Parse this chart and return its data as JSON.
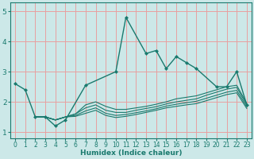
{
  "xlabel": "Humidex (Indice chaleur)",
  "line_color": "#1a7a6e",
  "bg_color": "#cce8e8",
  "grid_color": "#e8a0a0",
  "xlim": [
    -0.5,
    23.5
  ],
  "ylim": [
    0.8,
    5.3
  ],
  "yticks": [
    1,
    2,
    3,
    4,
    5
  ],
  "xticks": [
    0,
    1,
    2,
    3,
    4,
    5,
    6,
    7,
    8,
    9,
    10,
    11,
    12,
    13,
    14,
    15,
    16,
    17,
    18,
    19,
    20,
    21,
    22,
    23
  ],
  "main_line": {
    "x": [
      0,
      1,
      2,
      3,
      4,
      5,
      7,
      10,
      11,
      13,
      14,
      15,
      16,
      17,
      18,
      20,
      21,
      22,
      23
    ],
    "y": [
      2.6,
      2.4,
      1.5,
      1.5,
      1.2,
      1.4,
      2.55,
      3.0,
      4.8,
      3.6,
      3.7,
      3.1,
      3.5,
      3.3,
      3.1,
      2.5,
      2.5,
      3.0,
      1.9
    ]
  },
  "linear_lines": [
    {
      "x": [
        2,
        3,
        4,
        5,
        6,
        7,
        8,
        9,
        10,
        11,
        12,
        13,
        14,
        15,
        16,
        17,
        18,
        19,
        20,
        21,
        22,
        23
      ],
      "y": [
        1.5,
        1.5,
        1.4,
        1.5,
        1.6,
        1.9,
        2.0,
        1.85,
        1.75,
        1.75,
        1.8,
        1.85,
        1.92,
        2.0,
        2.1,
        2.15,
        2.2,
        2.3,
        2.4,
        2.5,
        2.55,
        1.95
      ]
    },
    {
      "x": [
        2,
        3,
        4,
        5,
        6,
        7,
        8,
        9,
        10,
        11,
        12,
        13,
        14,
        15,
        16,
        17,
        18,
        19,
        20,
        21,
        22,
        23
      ],
      "y": [
        1.5,
        1.5,
        1.4,
        1.5,
        1.6,
        1.8,
        1.9,
        1.72,
        1.65,
        1.65,
        1.72,
        1.78,
        1.84,
        1.93,
        2.0,
        2.05,
        2.1,
        2.22,
        2.32,
        2.42,
        2.48,
        1.9
      ]
    },
    {
      "x": [
        2,
        3,
        4,
        5,
        6,
        7,
        8,
        9,
        10,
        11,
        12,
        13,
        14,
        15,
        16,
        17,
        18,
        19,
        20,
        21,
        22,
        23
      ],
      "y": [
        1.5,
        1.5,
        1.4,
        1.5,
        1.55,
        1.7,
        1.8,
        1.62,
        1.55,
        1.58,
        1.64,
        1.7,
        1.77,
        1.86,
        1.92,
        1.97,
        2.02,
        2.12,
        2.22,
        2.32,
        2.38,
        1.84
      ]
    },
    {
      "x": [
        2,
        3,
        4,
        5,
        6,
        7,
        8,
        9,
        10,
        11,
        12,
        13,
        14,
        15,
        16,
        17,
        18,
        19,
        20,
        21,
        22,
        23
      ],
      "y": [
        1.5,
        1.5,
        1.4,
        1.5,
        1.52,
        1.62,
        1.72,
        1.55,
        1.48,
        1.52,
        1.58,
        1.65,
        1.72,
        1.8,
        1.85,
        1.9,
        1.94,
        2.04,
        2.14,
        2.24,
        2.3,
        1.78
      ]
    }
  ]
}
